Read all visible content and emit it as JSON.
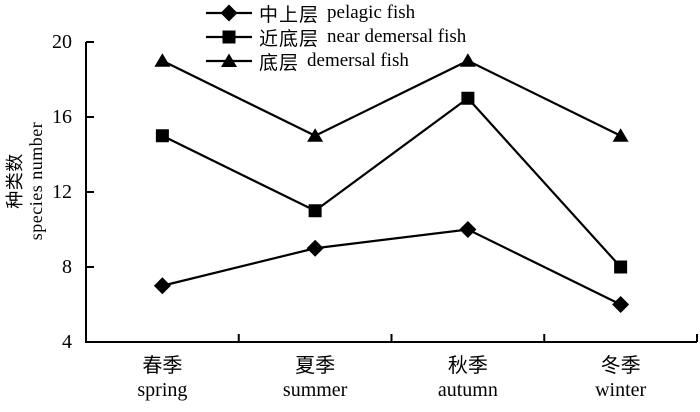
{
  "chart_data": {
    "type": "line",
    "title": "",
    "categories": [
      {
        "zh": "春季",
        "en": "spring"
      },
      {
        "zh": "夏季",
        "en": "summer"
      },
      {
        "zh": "秋季",
        "en": "autumn"
      },
      {
        "zh": "冬季",
        "en": "winter"
      }
    ],
    "series": [
      {
        "name_zh": "中上层",
        "name_en": "pelagic fish",
        "marker": "diamond",
        "values": [
          7,
          9,
          10,
          6
        ]
      },
      {
        "name_zh": "近底层",
        "name_en": "near demersal fish",
        "marker": "square",
        "values": [
          15,
          11,
          17,
          8
        ]
      },
      {
        "name_zh": "底层",
        "name_en": "demersal fish",
        "marker": "triangle",
        "values": [
          19,
          15,
          19,
          15
        ]
      }
    ],
    "ylabel_zh": "种类数",
    "ylabel_en": "species number",
    "xlabel": "",
    "ylim": [
      4,
      20
    ],
    "yticks": [
      4,
      8,
      12,
      16,
      20
    ],
    "grid": false,
    "legend_position": "top-inside",
    "line_color": "#000000",
    "marker_color": "#000000",
    "axis_color": "#000000",
    "background": "#ffffff"
  }
}
